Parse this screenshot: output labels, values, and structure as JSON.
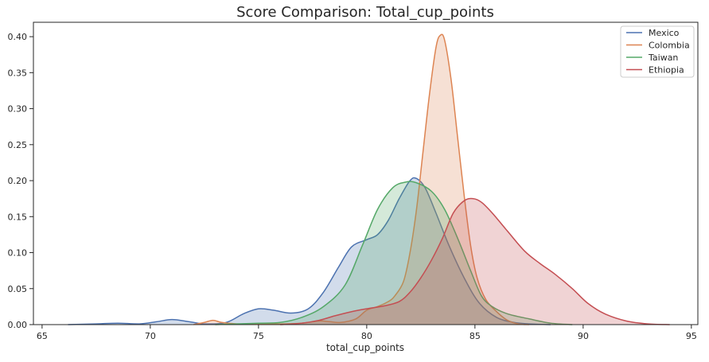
{
  "chart_data": {
    "type": "area",
    "title": "Score Comparison: Total_cup_points",
    "xlabel": "total_cup_points",
    "ylabel": "",
    "xlim": [
      64.6,
      95.3
    ],
    "ylim": [
      0,
      0.42
    ],
    "xticks": [
      65,
      70,
      75,
      80,
      85,
      90,
      95
    ],
    "yticks": [
      0.0,
      0.05,
      0.1,
      0.15,
      0.2,
      0.25,
      0.3,
      0.35,
      0.4
    ],
    "xtick_labels": [
      "65",
      "70",
      "75",
      "80",
      "85",
      "90",
      "95"
    ],
    "ytick_labels": [
      "0.00",
      "0.05",
      "0.10",
      "0.15",
      "0.20",
      "0.25",
      "0.30",
      "0.35",
      "0.40"
    ],
    "grid": false,
    "legend_position": "top-right",
    "series": [
      {
        "name": "Mexico",
        "color": "#4c72b0",
        "points": [
          [
            66.2,
            0
          ],
          [
            67.5,
            0.001
          ],
          [
            68.5,
            0.002
          ],
          [
            69.5,
            0.001
          ],
          [
            70.3,
            0.004
          ],
          [
            71,
            0.007
          ],
          [
            71.8,
            0.004
          ],
          [
            72.5,
            0.001
          ],
          [
            73.5,
            0.003
          ],
          [
            74.3,
            0.015
          ],
          [
            75,
            0.022
          ],
          [
            75.7,
            0.02
          ],
          [
            76.5,
            0.016
          ],
          [
            77.3,
            0.022
          ],
          [
            78,
            0.045
          ],
          [
            78.7,
            0.08
          ],
          [
            79.3,
            0.108
          ],
          [
            80,
            0.118
          ],
          [
            80.5,
            0.125
          ],
          [
            81,
            0.145
          ],
          [
            81.5,
            0.175
          ],
          [
            82,
            0.2
          ],
          [
            82.3,
            0.203
          ],
          [
            82.7,
            0.19
          ],
          [
            83.2,
            0.155
          ],
          [
            83.8,
            0.11
          ],
          [
            84.5,
            0.065
          ],
          [
            85.2,
            0.03
          ],
          [
            86,
            0.01
          ],
          [
            86.8,
            0.003
          ],
          [
            87.5,
            0.001
          ],
          [
            88.5,
            0
          ]
        ]
      },
      {
        "name": "Colombia",
        "color": "#dd8452",
        "points": [
          [
            72,
            0
          ],
          [
            72.5,
            0.003
          ],
          [
            72.9,
            0.006
          ],
          [
            73.3,
            0.003
          ],
          [
            74,
            0.001
          ],
          [
            75,
            0.001
          ],
          [
            76,
            0.001
          ],
          [
            77,
            0.002
          ],
          [
            77.8,
            0.005
          ],
          [
            78.3,
            0.004
          ],
          [
            78.8,
            0.003
          ],
          [
            79.5,
            0.008
          ],
          [
            80,
            0.02
          ],
          [
            80.5,
            0.025
          ],
          [
            81,
            0.032
          ],
          [
            81.3,
            0.04
          ],
          [
            81.7,
            0.06
          ],
          [
            82,
            0.1
          ],
          [
            82.3,
            0.16
          ],
          [
            82.6,
            0.24
          ],
          [
            82.9,
            0.32
          ],
          [
            83.2,
            0.385
          ],
          [
            83.4,
            0.402
          ],
          [
            83.6,
            0.395
          ],
          [
            83.9,
            0.34
          ],
          [
            84.2,
            0.26
          ],
          [
            84.5,
            0.18
          ],
          [
            84.8,
            0.11
          ],
          [
            85.1,
            0.065
          ],
          [
            85.5,
            0.035
          ],
          [
            86,
            0.018
          ],
          [
            86.5,
            0.006
          ],
          [
            87,
            0.001
          ],
          [
            87.5,
            0
          ]
        ]
      },
      {
        "name": "Taiwan",
        "color": "#55a868",
        "points": [
          [
            73,
            0
          ],
          [
            74,
            0.001
          ],
          [
            75,
            0.002
          ],
          [
            76,
            0.003
          ],
          [
            77,
            0.01
          ],
          [
            78,
            0.025
          ],
          [
            79,
            0.055
          ],
          [
            79.8,
            0.11
          ],
          [
            80.5,
            0.16
          ],
          [
            81.2,
            0.19
          ],
          [
            81.8,
            0.198
          ],
          [
            82.3,
            0.197
          ],
          [
            83,
            0.185
          ],
          [
            83.6,
            0.16
          ],
          [
            84.2,
            0.12
          ],
          [
            84.8,
            0.075
          ],
          [
            85.3,
            0.04
          ],
          [
            85.8,
            0.025
          ],
          [
            86.5,
            0.015
          ],
          [
            87.5,
            0.008
          ],
          [
            88.5,
            0.002
          ],
          [
            89.5,
            0
          ]
        ]
      },
      {
        "name": "Ethiopia",
        "color": "#c44e52",
        "points": [
          [
            76,
            0
          ],
          [
            77,
            0.002
          ],
          [
            77.8,
            0.006
          ],
          [
            78.5,
            0.012
          ],
          [
            79.3,
            0.018
          ],
          [
            80,
            0.022
          ],
          [
            80.8,
            0.026
          ],
          [
            81.5,
            0.032
          ],
          [
            82,
            0.045
          ],
          [
            82.5,
            0.065
          ],
          [
            83,
            0.09
          ],
          [
            83.5,
            0.12
          ],
          [
            84,
            0.155
          ],
          [
            84.5,
            0.172
          ],
          [
            84.9,
            0.175
          ],
          [
            85.3,
            0.17
          ],
          [
            85.8,
            0.155
          ],
          [
            86.5,
            0.13
          ],
          [
            87.3,
            0.102
          ],
          [
            88,
            0.085
          ],
          [
            88.7,
            0.07
          ],
          [
            89.5,
            0.05
          ],
          [
            90.2,
            0.03
          ],
          [
            91,
            0.015
          ],
          [
            92,
            0.005
          ],
          [
            93,
            0.001
          ],
          [
            94,
            0
          ]
        ]
      }
    ]
  }
}
